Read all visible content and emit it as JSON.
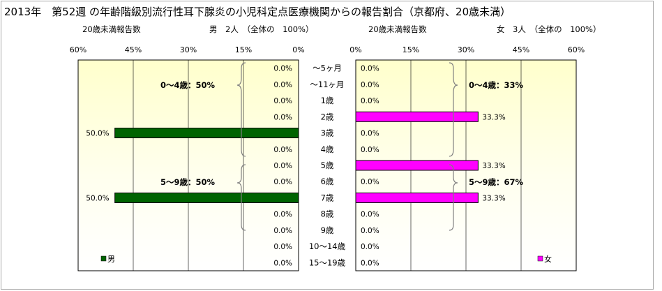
{
  "title": "2013年　第52週 の年齢階級別流行性耳下腺炎の小児科定点医療機関からの報告割合（京都府、20歳未満）",
  "left_header": {
    "label": "20歳未満報告数",
    "summary": "男　2人　（全体の　100%）"
  },
  "right_header": {
    "label": "20歳未満報告数",
    "summary": "女　3人　（全体の　100%）"
  },
  "categories": [
    "～5ヶ月",
    "～11ヶ月",
    "1歳",
    "2歳",
    "3歳",
    "4歳",
    "5歳",
    "6歳",
    "7歳",
    "8歳",
    "9歳",
    "10～14歳",
    "15～19歳"
  ],
  "left_ticks": [
    "60%",
    "45%",
    "30%",
    "15%",
    "0%"
  ],
  "right_ticks": [
    "0%",
    "15%",
    "30%",
    "45%",
    "60%"
  ],
  "colors": {
    "male": "#006400",
    "female": "#ff00ff",
    "bg_top": "#ffffcc"
  },
  "chart_data": [
    {
      "type": "bar",
      "title": "",
      "series": [
        {
          "name": "男",
          "values": [
            0,
            0,
            0,
            0,
            50,
            0,
            0,
            0,
            50,
            0,
            0,
            0,
            0
          ]
        }
      ],
      "data_labels": [
        "0.0%",
        "0.0%",
        "0.0%",
        "0.0%",
        "50.0%",
        "0.0%",
        "0.0%",
        "0.0%",
        "50.0%",
        "0.0%",
        "0.0%",
        "0.0%",
        "0.0%"
      ],
      "xlim": [
        60,
        0
      ],
      "orientation": "horizontal",
      "grid": true,
      "legend": "bottom-left",
      "annotations": [
        "0～4歳：50%",
        "5～9歳：50%"
      ]
    },
    {
      "type": "bar",
      "title": "",
      "series": [
        {
          "name": "女",
          "values": [
            0,
            0,
            0,
            33.3,
            0,
            0,
            33.3,
            0,
            33.3,
            0,
            0,
            0,
            0
          ]
        }
      ],
      "data_labels": [
        "0.0%",
        "0.0%",
        "0.0%",
        "33.3%",
        "0.0%",
        "0.0%",
        "33.3%",
        "0.0%",
        "33.3%",
        "0.0%",
        "0.0%",
        "0.0%",
        "0.0%"
      ],
      "xlim": [
        0,
        60
      ],
      "orientation": "horizontal",
      "grid": true,
      "legend": "bottom-right",
      "annotations": [
        "0～4歳：33%",
        "5～9歳：67%"
      ]
    }
  ]
}
